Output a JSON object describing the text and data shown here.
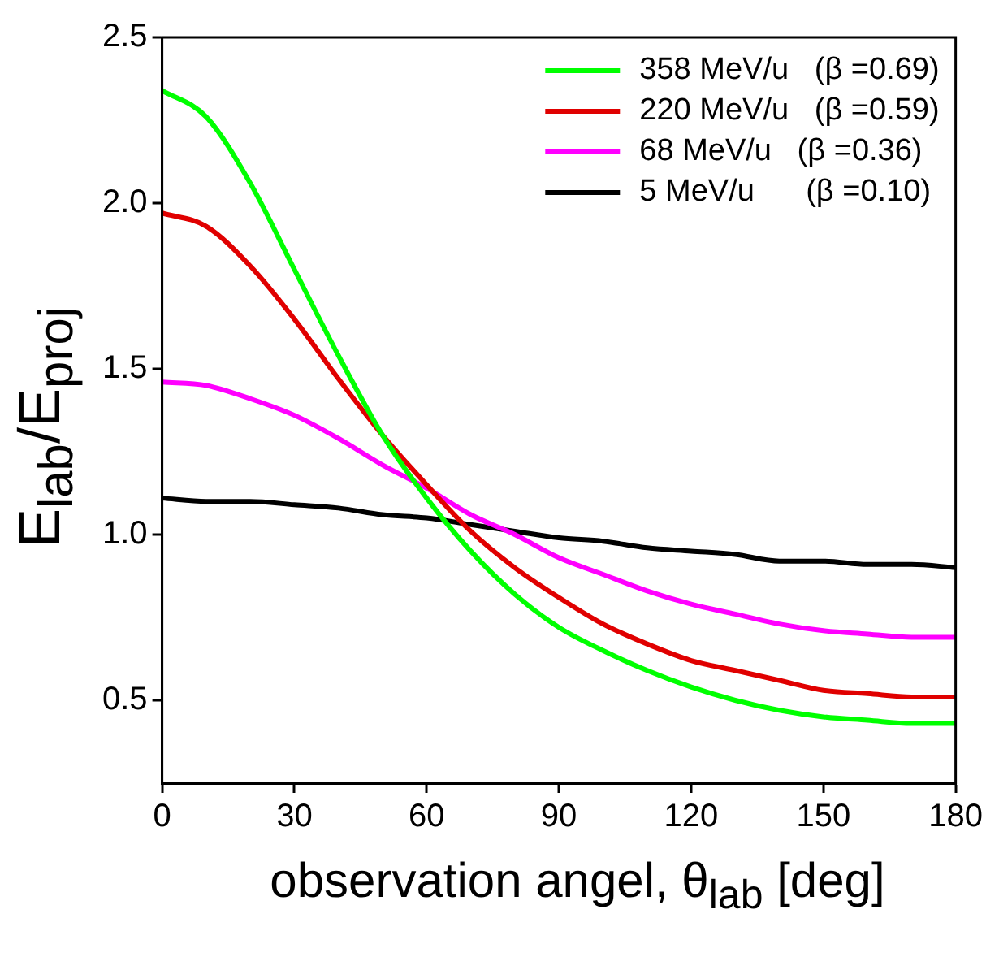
{
  "chart_data": {
    "type": "line",
    "xlabel": "observation angel, θ$_{lab}$ [deg]",
    "ylabel": "E$_{lab}$/E$_{proj}$",
    "x": [
      0,
      10,
      20,
      30,
      40,
      50,
      60,
      70,
      80,
      90,
      100,
      110,
      120,
      130,
      140,
      150,
      160,
      170,
      180
    ],
    "series": [
      {
        "name": "358 MeV/u   (β =0.69)",
        "color": "#00ff00",
        "values": [
          2.34,
          2.26,
          2.06,
          1.8,
          1.54,
          1.3,
          1.11,
          0.95,
          0.82,
          0.72,
          0.65,
          0.59,
          0.54,
          0.5,
          0.47,
          0.45,
          0.44,
          0.43,
          0.43
        ]
      },
      {
        "name": "220 MeV/u   (β =0.59)",
        "color": "#e00000",
        "values": [
          1.97,
          1.93,
          1.81,
          1.65,
          1.47,
          1.3,
          1.15,
          1.01,
          0.9,
          0.81,
          0.73,
          0.67,
          0.62,
          0.59,
          0.56,
          0.53,
          0.52,
          0.51,
          0.51
        ]
      },
      {
        "name": "68 MeV/u   (β =0.36)",
        "color": "#ff00ff",
        "values": [
          1.46,
          1.45,
          1.41,
          1.36,
          1.29,
          1.21,
          1.14,
          1.06,
          1.0,
          0.93,
          0.88,
          0.83,
          0.79,
          0.76,
          0.73,
          0.71,
          0.7,
          0.69,
          0.69
        ]
      },
      {
        "name": "5 MeV/u      (β =0.10)",
        "color": "#000000",
        "values": [
          1.11,
          1.1,
          1.1,
          1.09,
          1.08,
          1.06,
          1.05,
          1.03,
          1.01,
          0.99,
          0.98,
          0.96,
          0.95,
          0.94,
          0.92,
          0.92,
          0.91,
          0.91,
          0.9
        ]
      }
    ],
    "xlim": [
      0,
      180
    ],
    "xticks": [
      0,
      30,
      60,
      90,
      120,
      150,
      180
    ],
    "ylim": [
      0.25,
      2.5
    ],
    "yticks": [
      {
        "value": 0.5,
        "label": "0.5"
      },
      {
        "value": 1,
        "label": "1.0"
      },
      {
        "value": 1.5,
        "label": "1.5"
      },
      {
        "value": 2,
        "label": "2.0"
      },
      {
        "value": 2.5,
        "label": "2.5"
      }
    ],
    "grid": false,
    "legend": "top right",
    "marker": "none",
    "line_style": "solid"
  }
}
